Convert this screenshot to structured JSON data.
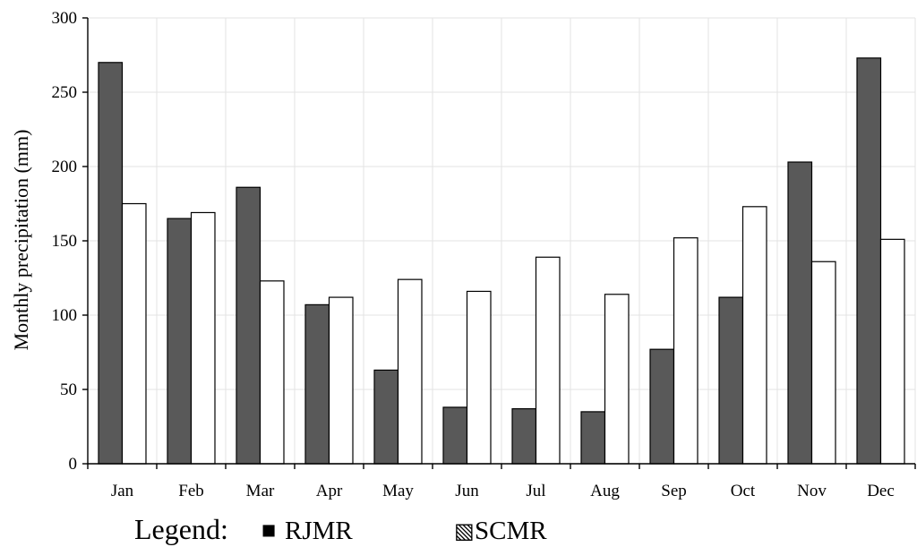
{
  "chart_data": {
    "type": "bar",
    "categories": [
      "Jan",
      "Feb",
      "Mar",
      "Apr",
      "May",
      "Jun",
      "Jul",
      "Aug",
      "Sep",
      "Oct",
      "Nov",
      "Dec"
    ],
    "series": [
      {
        "name": "RJMR",
        "values": [
          270,
          165,
          186,
          107,
          63,
          38,
          37,
          35,
          77,
          112,
          203,
          273
        ],
        "color": "#595959"
      },
      {
        "name": "SCMR",
        "values": [
          175,
          169,
          123,
          112,
          124,
          116,
          139,
          114,
          152,
          173,
          136,
          151
        ],
        "color": "#ffffff"
      }
    ],
    "ylabel": "Monthly precipitation (mm)",
    "xlabel": "",
    "ylim": [
      0,
      300
    ],
    "yticks": [
      0,
      50,
      100,
      150,
      200,
      250,
      300
    ],
    "grid": true,
    "legend_position": "bottom-left"
  },
  "legend": {
    "title": "Legend:",
    "items": [
      {
        "marker": "■",
        "label": "RJMR"
      },
      {
        "marker": "▧",
        "label": "SCMR"
      }
    ]
  }
}
